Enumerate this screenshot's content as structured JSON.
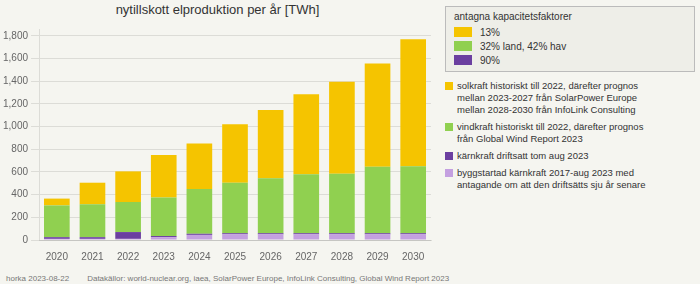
{
  "chart_data": {
    "type": "bar",
    "title": "nytillskott elproduktion per år [TWh]",
    "categories": [
      2020,
      2021,
      2022,
      2023,
      2024,
      2025,
      2026,
      2027,
      2028,
      2029,
      2030
    ],
    "series": [
      {
        "color": "#C4A0E0",
        "values": [
          10,
          10,
          10,
          25,
          45,
          50,
          50,
          50,
          50,
          50,
          50
        ]
      },
      {
        "name": "90%",
        "color": "#6B3FA0",
        "values": [
          15,
          15,
          60,
          10,
          10,
          10,
          10,
          10,
          10,
          10,
          10
        ]
      },
      {
        "name": "32% land, 42% hav",
        "color": "#90D050",
        "values": [
          280,
          290,
          265,
          340,
          395,
          445,
          485,
          520,
          525,
          585,
          590
        ]
      },
      {
        "name": "13%",
        "color": "#F5C400",
        "values": [
          60,
          190,
          270,
          375,
          400,
          515,
          600,
          705,
          810,
          910,
          1120
        ]
      }
    ],
    "stacked": true,
    "ylim": [
      0,
      1860
    ],
    "yticks": [
      0,
      200,
      400,
      600,
      800,
      1000,
      1200,
      1400,
      1600,
      1800
    ],
    "grid": "y",
    "legend_title": "antagna kapacitetsfaktorer",
    "annotations": [
      {
        "color": "#F5C400",
        "lines": [
          "solkraft historiskt till 2022, därefter prognos",
          "mellan 2023-2027 från SolarPower Europe",
          "mellan 2028-2030 från InfoLink Consulting"
        ]
      },
      {
        "color": "#90D050",
        "lines": [
          "vindkraft historiskt till 2022, därefter prognos",
          "från Global Wind Report 2023"
        ]
      },
      {
        "color": "#6B3FA0",
        "lines": [
          "kärnkraft driftsatt tom aug 2023"
        ]
      },
      {
        "color": "#C4A0E0",
        "lines": [
          "byggstartad kärnkraft 2017-aug 2023 med",
          "antagande om att den driftsätts sju år senare"
        ]
      }
    ],
    "footnotes": [
      "horka 2023-08-22",
      "Datakällor: world-nuclear.org, iaea, SolarPower Europe, InfoLink Consulting, Global Wind Report 2023"
    ]
  }
}
